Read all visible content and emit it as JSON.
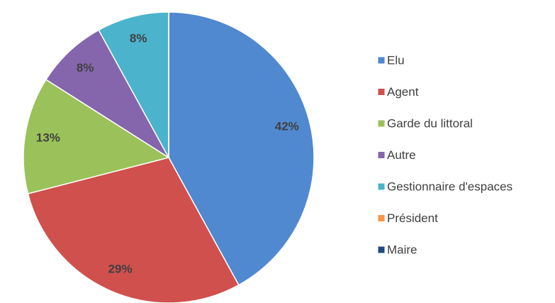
{
  "chart_data": {
    "type": "pie",
    "categories": [
      "Elu",
      "Agent",
      "Garde du littoral",
      "Autre",
      "Gestionnaire d'espaces",
      "Président",
      "Maire"
    ],
    "values": [
      42,
      29,
      13,
      8,
      8,
      0,
      0
    ],
    "value_labels": [
      "42%",
      "29%",
      "13%",
      "8%",
      "8%",
      null,
      null
    ],
    "colors": [
      "#5089d0",
      "#d0504d",
      "#9bc25a",
      "#8566ad",
      "#4bb3cc",
      "#f79646",
      "#1f497d"
    ],
    "legend": "right"
  }
}
